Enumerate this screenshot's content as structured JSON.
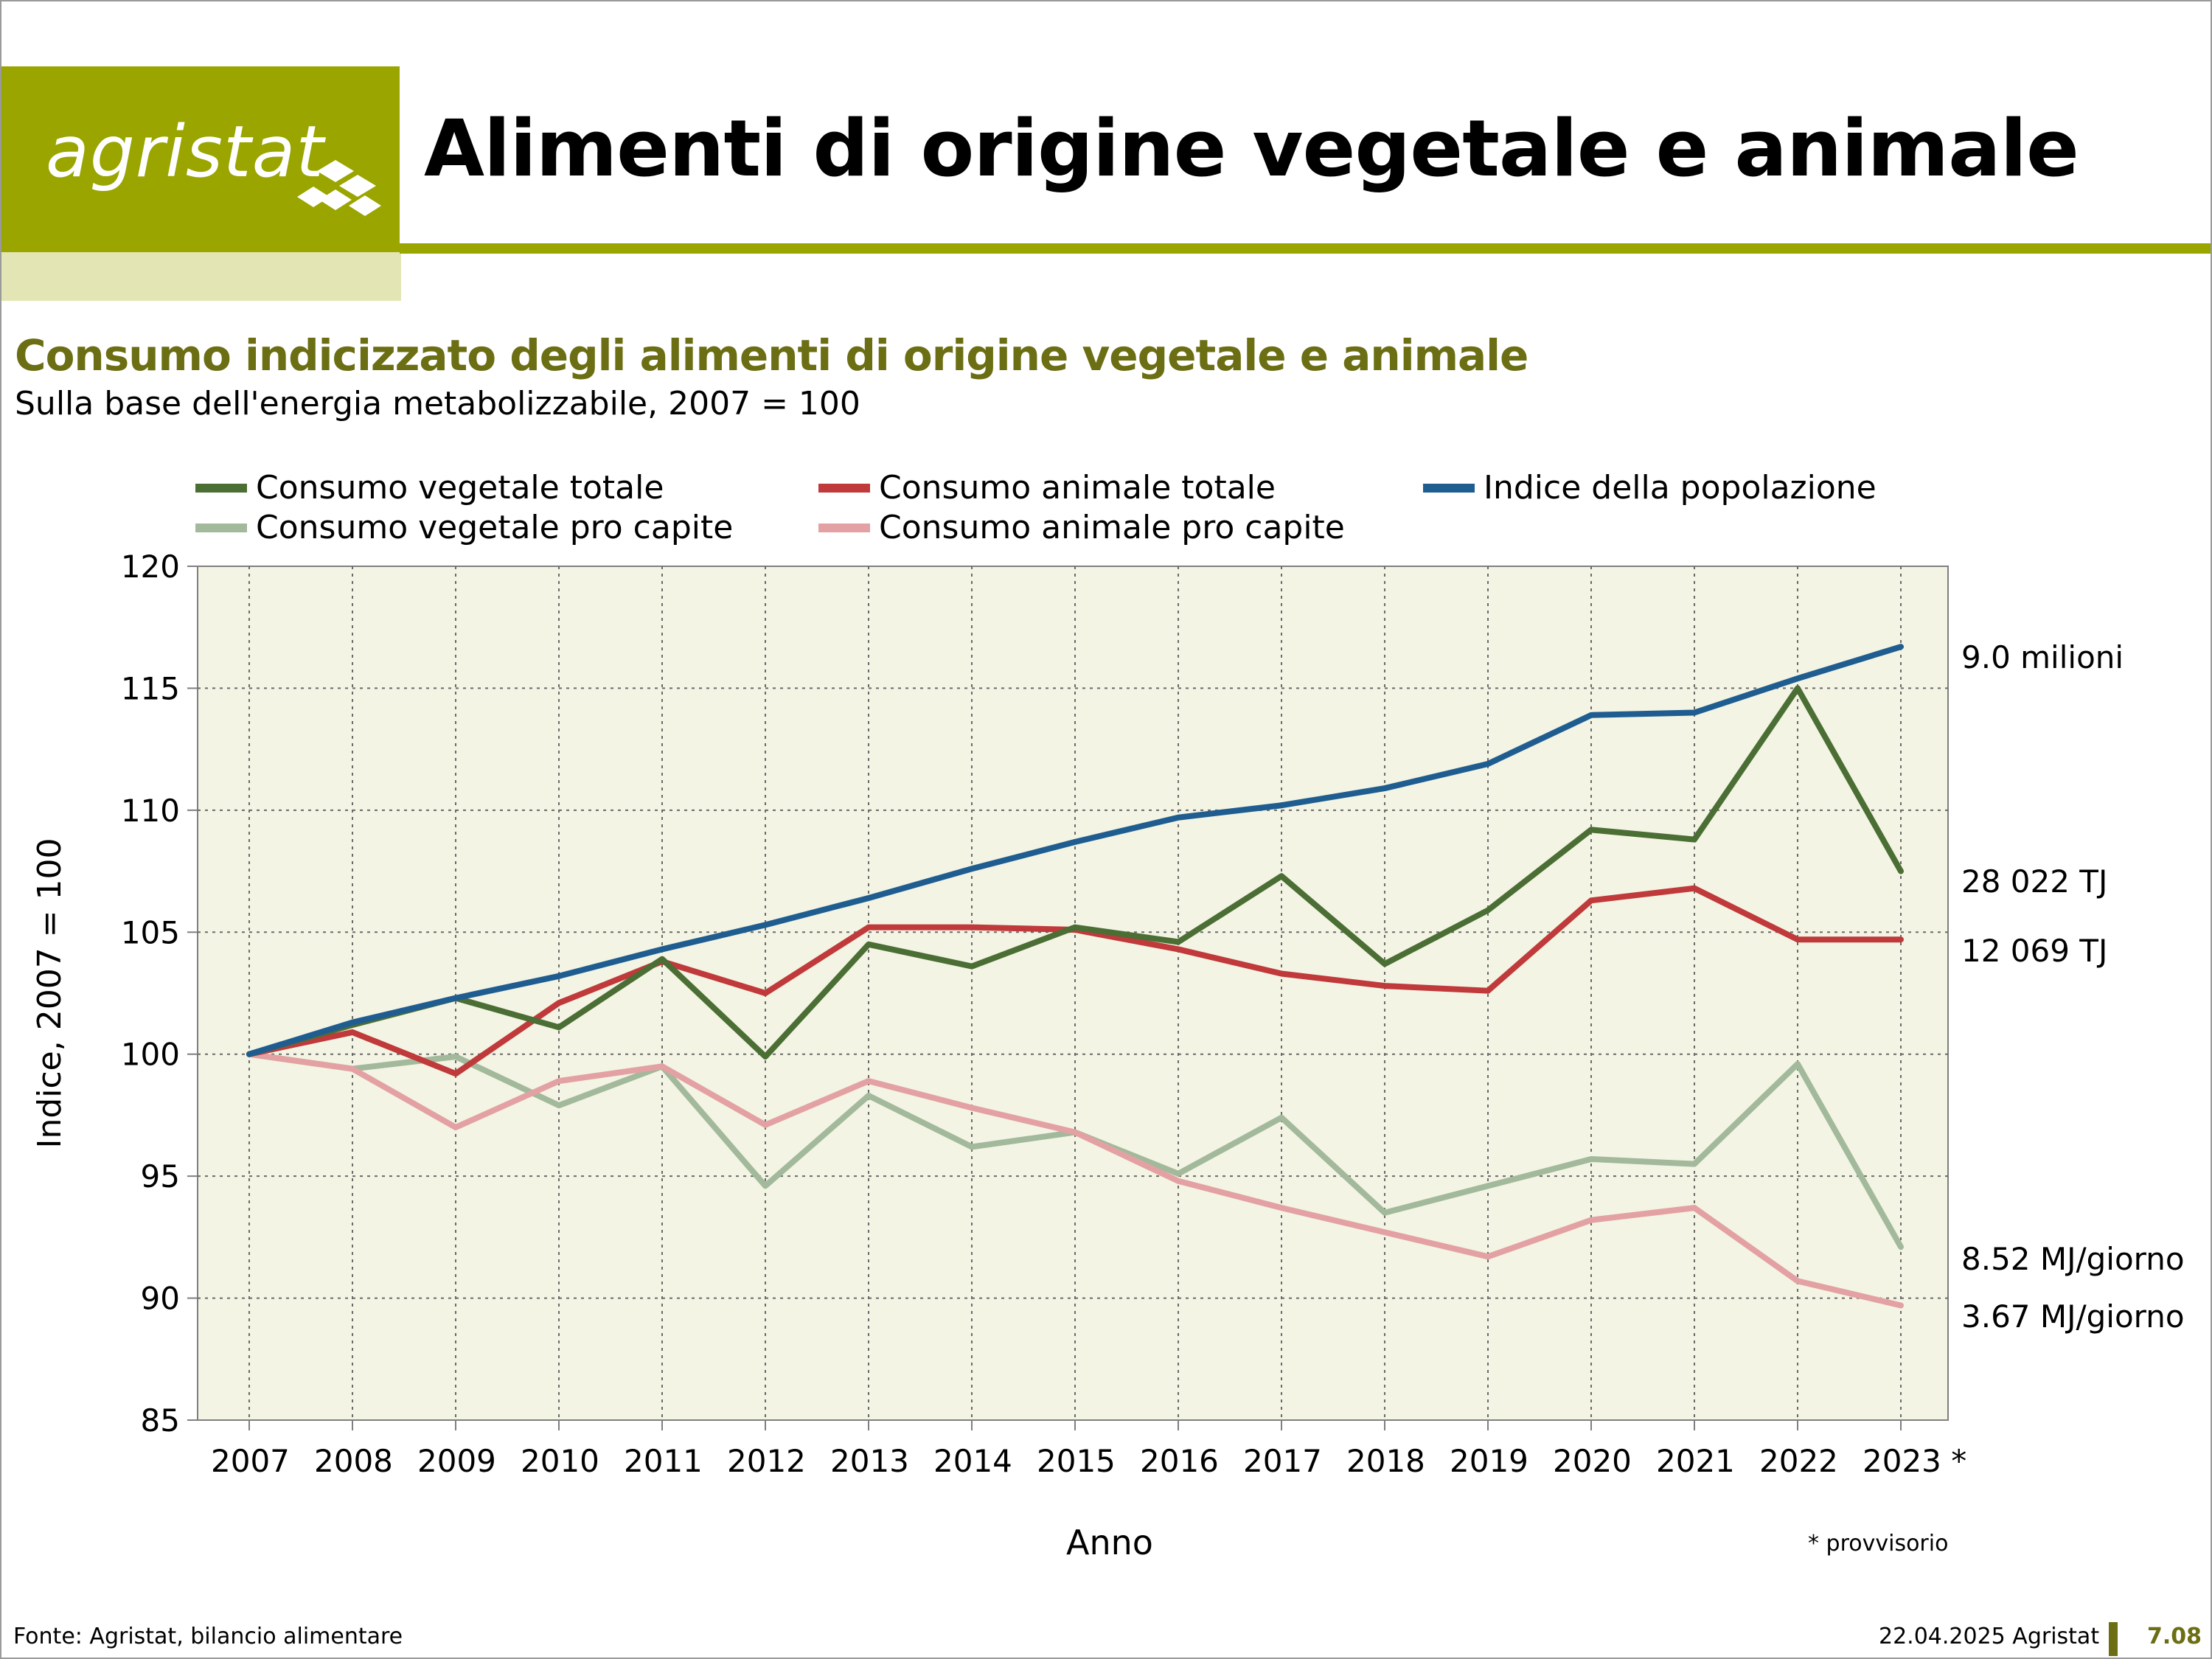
{
  "header": {
    "logo_text": "agristat",
    "title": "Alimenti di origine vegetale e animale"
  },
  "colors": {
    "brand": "#9aa500",
    "brand_light": "#e3e6b4",
    "title_green": "#6b6e12",
    "plot_bg": "#f3f4e3"
  },
  "chart_data": {
    "type": "line",
    "title": "Consumo indicizzato degli alimenti di origine vegetale e animale",
    "subtitle": "Sulla base dell'energia metabolizzabile, 2007 = 100",
    "xlabel": "Anno",
    "ylabel": "Indice, 2007 = 100",
    "ylim": [
      85,
      120
    ],
    "yticks": [
      85,
      90,
      95,
      100,
      105,
      110,
      115,
      120
    ],
    "x": [
      "2007",
      "2008",
      "2009",
      "2010",
      "2011",
      "2012",
      "2013",
      "2014",
      "2015",
      "2016",
      "2017",
      "2018",
      "2019",
      "2020",
      "2021",
      "2022",
      "2023 *"
    ],
    "grid": true,
    "legend_position": "top",
    "series": [
      {
        "name": "Consumo vegetale totale",
        "color": "#4b6e35",
        "values": [
          100,
          101.2,
          102.3,
          101.1,
          103.9,
          99.9,
          104.5,
          103.6,
          105.2,
          104.6,
          107.3,
          103.7,
          105.9,
          109.2,
          108.8,
          115.0,
          107.5
        ],
        "end_label": "28 022  TJ"
      },
      {
        "name": "Consumo animale totale",
        "color": "#c0393b",
        "values": [
          100,
          100.9,
          99.2,
          102.1,
          103.8,
          102.5,
          105.2,
          105.2,
          105.1,
          104.3,
          103.3,
          102.8,
          102.6,
          106.3,
          106.8,
          104.7,
          104.7
        ],
        "end_label": "12 069  TJ"
      },
      {
        "name": "Indice della popolazione",
        "color": "#1f5d91",
        "values": [
          100,
          101.3,
          102.3,
          103.2,
          104.3,
          105.3,
          106.4,
          107.6,
          108.7,
          109.7,
          110.2,
          110.9,
          111.9,
          113.9,
          114.0,
          115.4,
          116.7
        ],
        "end_label": "9.0  milioni"
      },
      {
        "name": "Consumo vegetale pro capite",
        "color": "#a2b99c",
        "values": [
          100,
          99.4,
          99.9,
          97.9,
          99.5,
          94.6,
          98.3,
          96.2,
          96.8,
          95.1,
          97.4,
          93.5,
          94.6,
          95.7,
          95.5,
          99.6,
          92.1
        ],
        "end_label": "8.52  MJ/giorno"
      },
      {
        "name": "Consumo animale pro capite",
        "color": "#e3a1a4",
        "values": [
          100,
          99.4,
          97.0,
          98.9,
          99.5,
          97.1,
          98.9,
          97.8,
          96.8,
          94.8,
          93.7,
          92.7,
          91.7,
          93.2,
          93.7,
          90.7,
          89.7
        ],
        "end_label": "3.67  MJ/giorno"
      }
    ],
    "note": "* provvisorio"
  },
  "footer": {
    "source": "Fonte: Agristat, bilancio alimentare",
    "date": "22.04.2025 Agristat",
    "page": "7.08"
  }
}
